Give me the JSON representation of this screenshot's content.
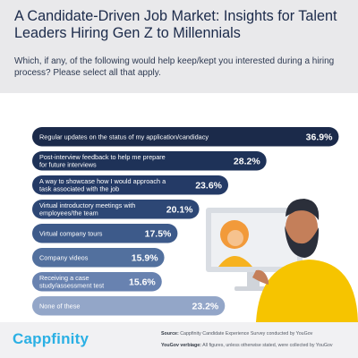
{
  "header": {
    "title": "A Candidate-Driven Job Market: Insights for Talent Leaders Hiring Gen Z to Millennials",
    "question": "Which, if any, of the following would help keep/kept you interested during a hiring process? Please select all that apply."
  },
  "chart_data": {
    "type": "bar",
    "orientation": "horizontal",
    "categories": [
      "Regular updates on the status of my application/candidacy",
      "Post-interview feedback to help me prepare for future interviews",
      "A way to showcase how I would approach a task associated with the job",
      "Virtual introductory meetings with employees/the team",
      "Virtual company tours",
      "Company videos",
      "Receiving a case study/assessment test",
      "None of these"
    ],
    "label_lines": [
      [
        "Regular updates on the status of my application/candidacy"
      ],
      [
        "Post-interview feedback to help me prepare",
        "for future interviews"
      ],
      [
        "A way to showcase how I would approach a",
        "task associated with the job"
      ],
      [
        "Virtual introductory meetings with",
        "employees/the team"
      ],
      [
        "Virtual company tours"
      ],
      [
        "Company videos"
      ],
      [
        "Receiving a case",
        "study/assessment test"
      ],
      [
        "None of these"
      ]
    ],
    "values": [
      36.9,
      28.2,
      23.6,
      20.1,
      17.5,
      15.9,
      15.6,
      23.2
    ],
    "value_labels": [
      "36.9%",
      "28.2%",
      "23.6%",
      "20.1%",
      "17.5%",
      "15.9%",
      "15.6%",
      "23.2%"
    ],
    "title": "",
    "xlabel": "",
    "ylabel": "",
    "colors": [
      "#1b2a4a",
      "#1e3258",
      "#243a66",
      "#2d4775",
      "#3d5a8a",
      "#52709e",
      "#6882b0",
      "#93a6c8"
    ]
  },
  "footer": {
    "logo": "Cappfinity",
    "source_label": "Source:",
    "source_text": "Cappfinity Candidate Experience Survey conducted by YouGov",
    "verbiage_label": "YouGov verbiage:",
    "verbiage_text": "All figures, unless otherwise stated, were collected by YouGov"
  }
}
